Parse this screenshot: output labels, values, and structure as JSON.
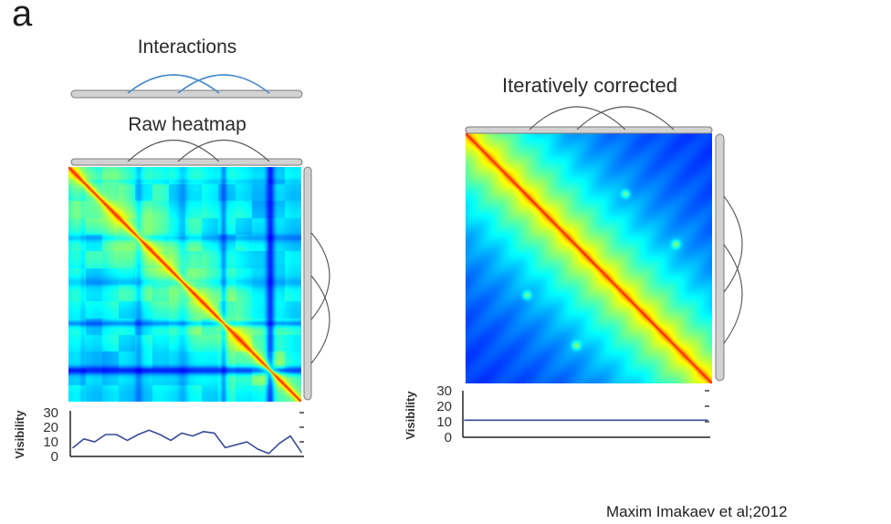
{
  "panel_label": "a",
  "interactions_title": "Interactions",
  "citation": "Maxim Imakaev et al;2012",
  "colors": {
    "interaction_arc": "#4a8acb",
    "contact_arc": "#555555",
    "chromosome_bar": "#d2d2d2",
    "chromosome_bar_edge": "#7a7a7a",
    "visibility_line": "#3a4a9a",
    "axis": "#222222"
  },
  "chart_data": [
    {
      "type": "heatmap",
      "title": "Raw heatmap"
    },
    {
      "type": "heatmap",
      "title": "Iteratively corrected"
    },
    {
      "type": "line",
      "ylabel": "Visibility",
      "ylim": [
        0,
        30
      ],
      "yticks": [
        0,
        10,
        20,
        30
      ],
      "series": [
        {
          "values": [
            6,
            12,
            10,
            15,
            15,
            11,
            15,
            18,
            15,
            11,
            16,
            14,
            17,
            16,
            6,
            8,
            10,
            5,
            2,
            9,
            14,
            3
          ]
        }
      ]
    },
    {
      "type": "line",
      "ylabel": "Visibility",
      "ylim": [
        0,
        30
      ],
      "yticks": [
        0,
        10,
        20,
        30
      ],
      "series": [
        {
          "values": [
            11,
            11,
            11,
            11,
            11,
            11,
            11,
            11,
            11,
            11,
            11,
            11,
            11,
            11,
            11,
            11,
            11,
            11,
            11,
            11,
            11,
            11
          ]
        }
      ]
    }
  ]
}
